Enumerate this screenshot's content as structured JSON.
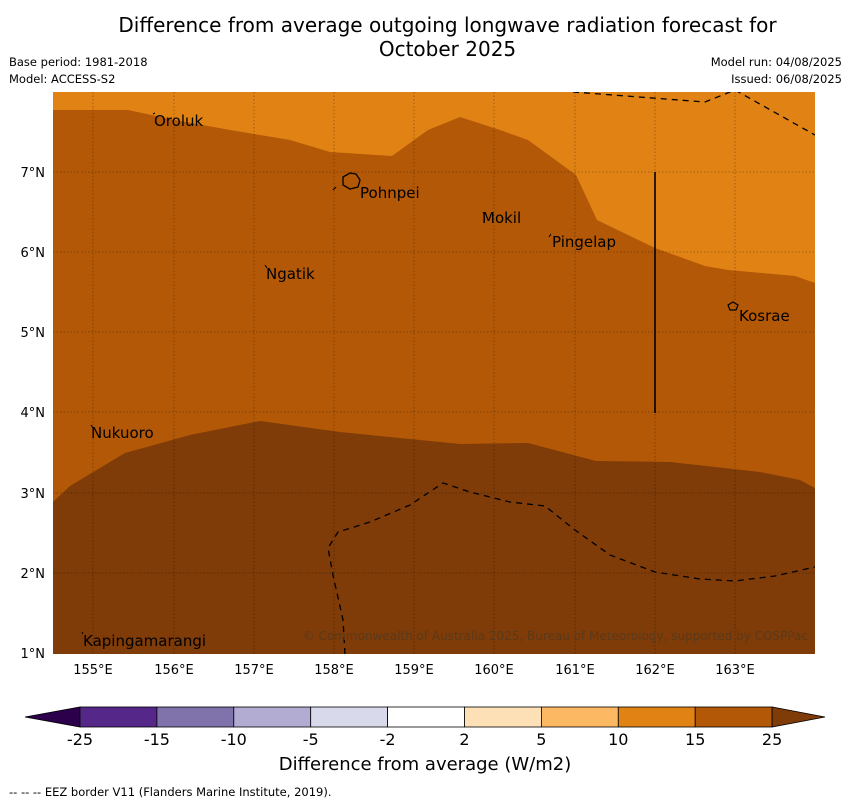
{
  "header": {
    "title_line1": "Difference from average outgoing longwave radiation forecast for",
    "title_line2": "October 2025",
    "base_period": "Base period: 1981-2018",
    "model": "Model: ACCESS-S2",
    "model_run": "Model run: 04/08/2025",
    "issued": "Issued: 06/08/2025"
  },
  "map": {
    "lon_labels": [
      "155°E",
      "156°E",
      "157°E",
      "158°E",
      "159°E",
      "160°E",
      "161°E",
      "162°E",
      "163°E"
    ],
    "lat_labels": [
      "7°N",
      "6°N",
      "5°N",
      "4°N",
      "3°N",
      "2°N",
      "1°N"
    ],
    "places": {
      "oroluk": "Oroluk",
      "pohnpei": "Pohnpei",
      "mokil": "Mokil",
      "pingelap": "Pingelap",
      "ngatik": "Ngatik",
      "kosrae": "Kosrae",
      "nukuoro": "Nukuoro",
      "kapingamarangi": "Kapingamarangi"
    },
    "copyright": "© Commonwealth of Australia 2025, Bureau of Meteorology, supported by COSPPac",
    "colors": {
      "band_10_15": "#e08214",
      "band_15_25": "#b35806",
      "band_25_plus": "#7f3b08"
    }
  },
  "colorbar": {
    "ticks": [
      "-25",
      "-15",
      "-10",
      "-5",
      "-2",
      "2",
      "5",
      "10",
      "15",
      "25"
    ],
    "colors": [
      "#2d004b",
      "#542788",
      "#8073ac",
      "#b2abd2",
      "#d8daeb",
      "#ffffff",
      "#fee0b6",
      "#fdb863",
      "#e08214",
      "#b35806",
      "#7f3b08"
    ],
    "title": "Difference from average (W/m2)"
  },
  "footer": {
    "eez_note": "--  --  -- EEZ border V11 (Flanders Marine Institute, 2019)."
  }
}
